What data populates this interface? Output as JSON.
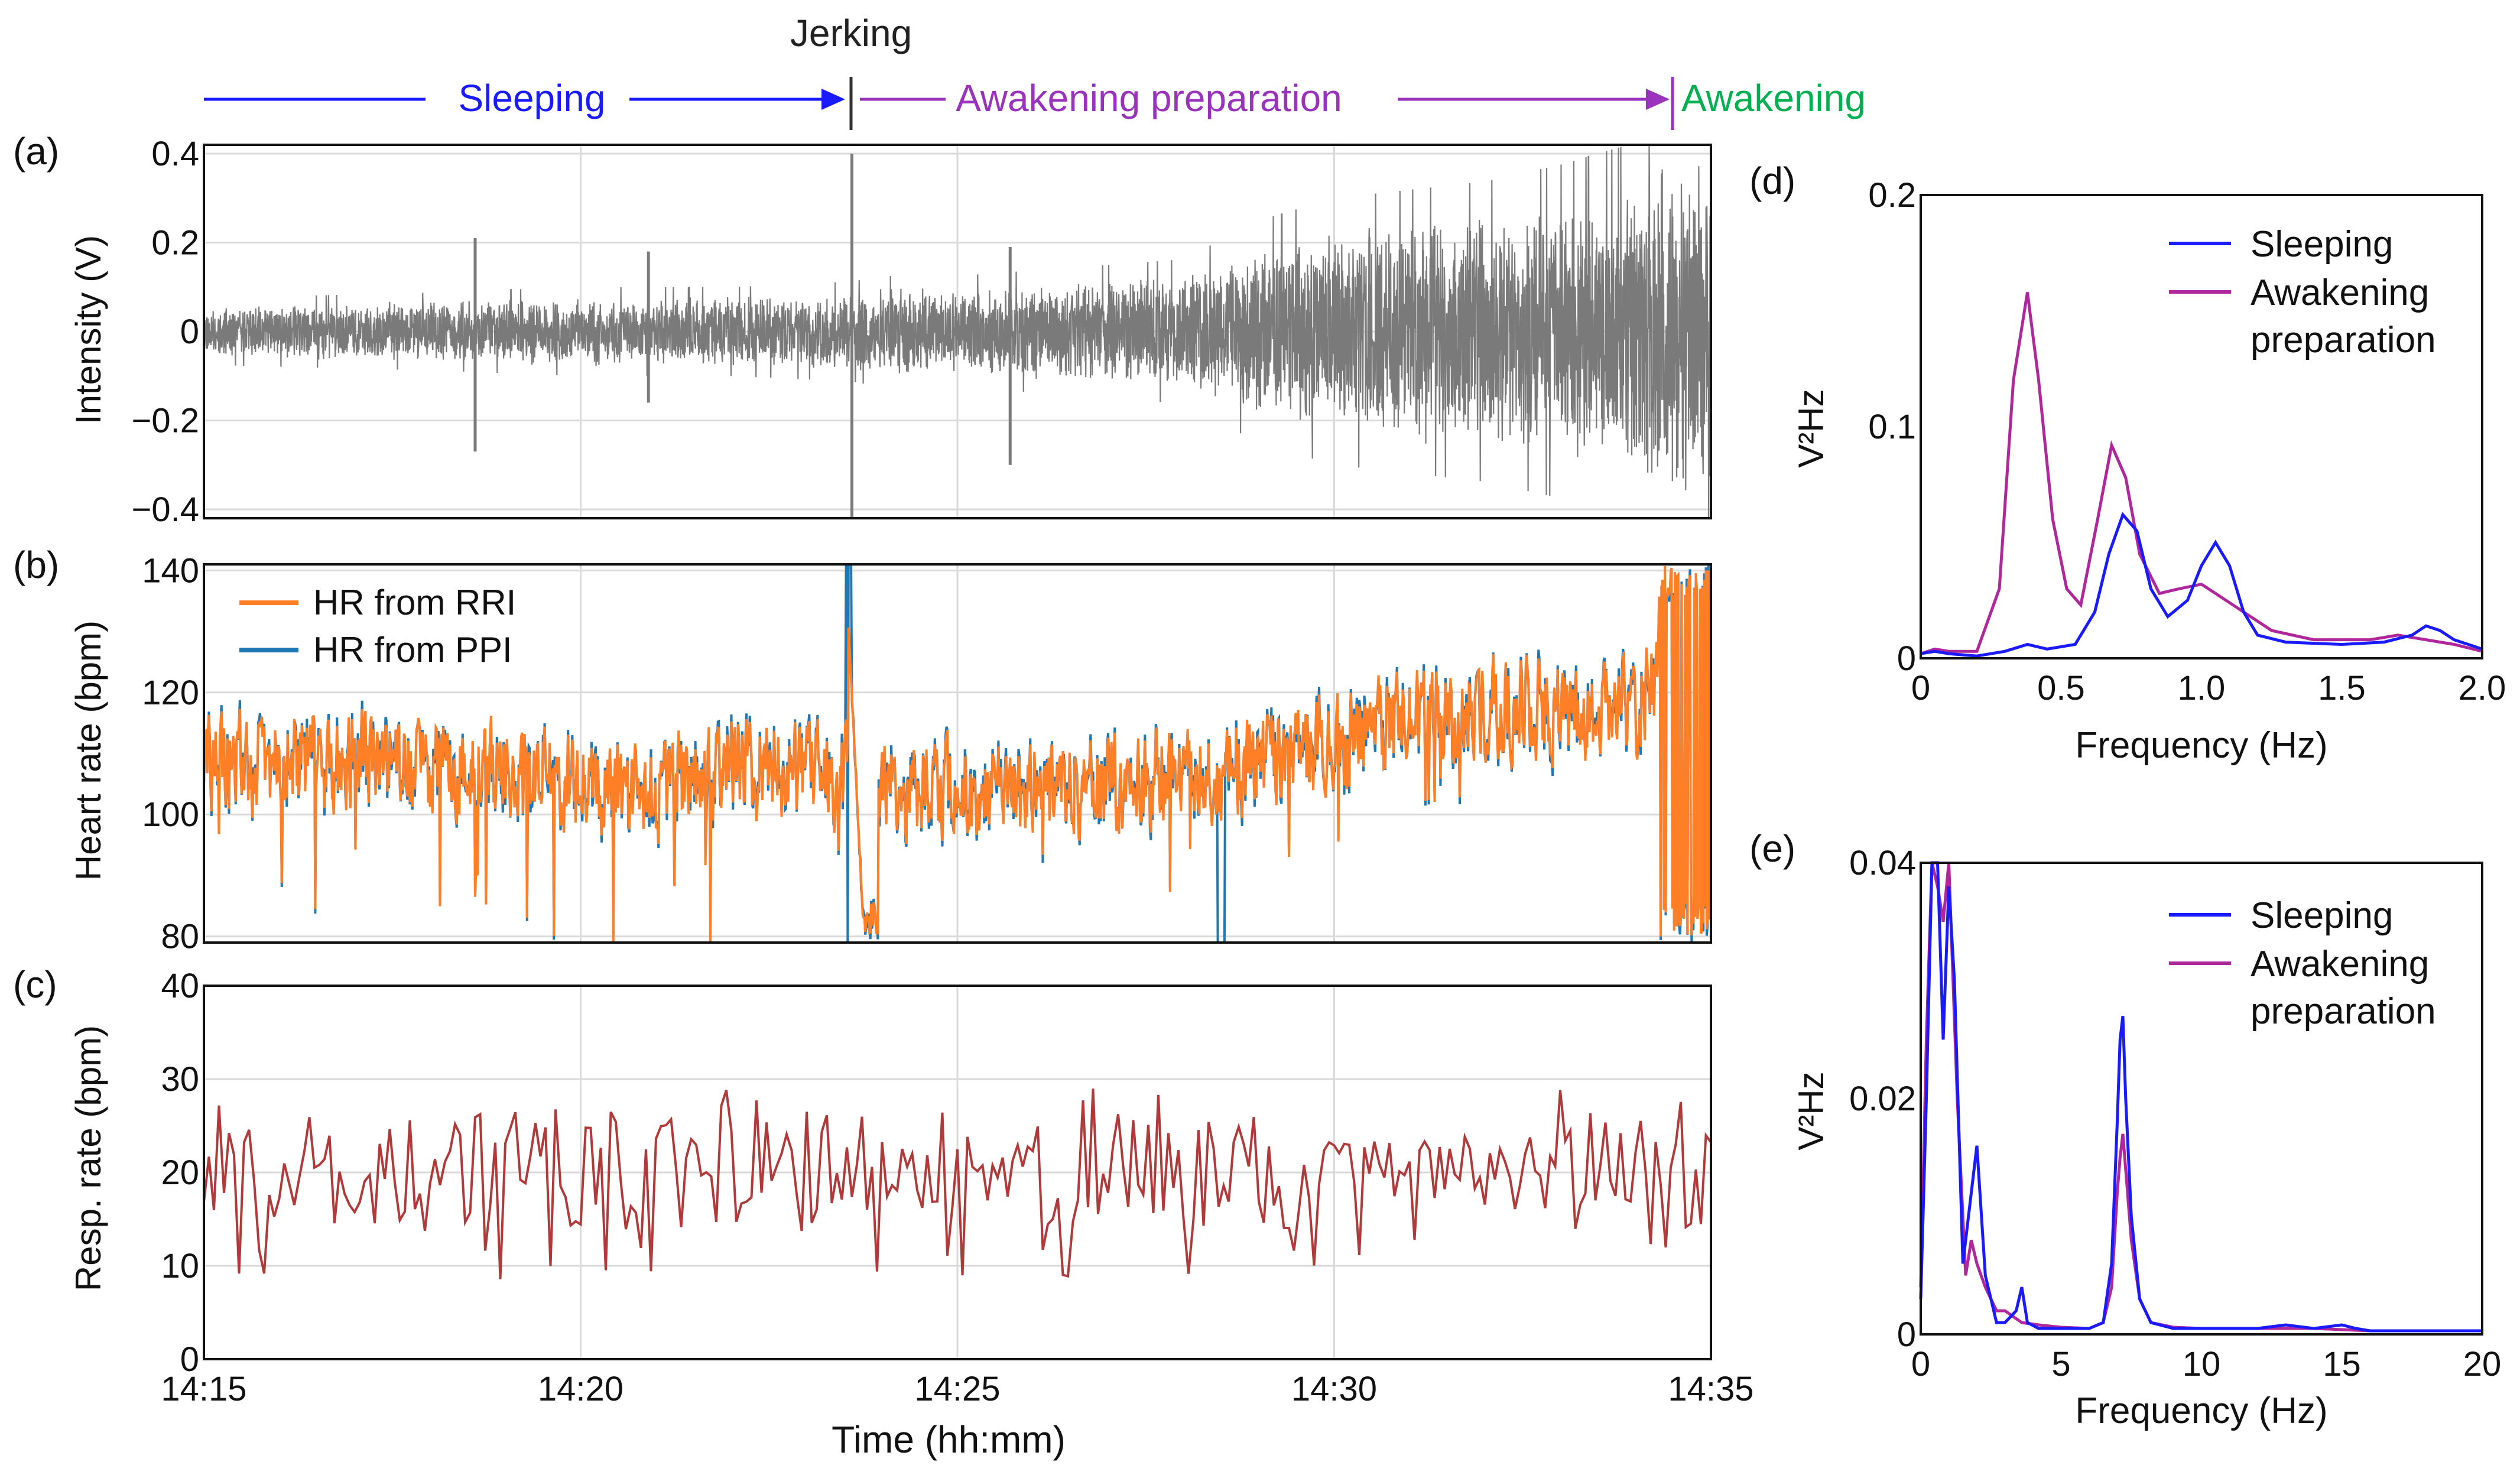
{
  "phases": {
    "jerking": "Jerking",
    "sleeping": "Sleeping",
    "awakening_preparation": "Awakening preparation",
    "awakening": "Awakening",
    "colors": {
      "sleeping": "#1a1aff",
      "awakening_preparation": "#9933bb",
      "awakening": "#00b050",
      "jerking": "#333333"
    }
  },
  "chart_data": [
    {
      "id": "a",
      "panel_label": "(a)",
      "type": "line",
      "title": "",
      "xlabel": "",
      "ylabel": "Intensity (V)",
      "ylim": [
        -0.42,
        0.42
      ],
      "yticks": [
        -0.4,
        -0.2,
        0,
        0.2,
        0.4
      ],
      "ytick_labels": [
        "−0.4",
        "−0.2",
        "0",
        "0.2",
        "0.4"
      ],
      "xlim": [
        0,
        20
      ],
      "grid": true,
      "series": [
        {
          "name": "Intensity",
          "color": "#7a7a7a",
          "envelope": [
            [
              0,
              0.06
            ],
            [
              3,
              0.07
            ],
            [
              5,
              0.08
            ],
            [
              7,
              0.08
            ],
            [
              8.6,
              0.09
            ],
            [
              9,
              0.1
            ],
            [
              10,
              0.1
            ],
            [
              11,
              0.11
            ],
            [
              13,
              0.13
            ],
            [
              14,
              0.2
            ],
            [
              15,
              0.24
            ],
            [
              17,
              0.27
            ],
            [
              18,
              0.3
            ],
            [
              19,
              0.34
            ],
            [
              19.5,
              0.4
            ],
            [
              20,
              0.42
            ]
          ],
          "spikes": [
            [
              3.6,
              0.21,
              -0.27
            ],
            [
              5.9,
              0.18,
              -0.16
            ],
            [
              8.6,
              0.4,
              -0.42
            ],
            [
              10.7,
              0.19,
              -0.3
            ]
          ]
        }
      ]
    },
    {
      "id": "b",
      "panel_label": "(b)",
      "type": "line",
      "title": "",
      "xlabel": "",
      "ylabel": "Heart rate (bpm)",
      "ylim": [
        79,
        141
      ],
      "yticks": [
        80,
        100,
        120,
        140
      ],
      "ytick_labels": [
        "80",
        "100",
        "120",
        "140"
      ],
      "xlim": [
        0,
        20
      ],
      "grid": true,
      "legend": "top-left",
      "series": [
        {
          "name": "HR from RRI",
          "color": "#ff7f27"
        },
        {
          "name": "HR from PPI",
          "color": "#1f77b4"
        }
      ],
      "trend": [
        [
          0,
          108
        ],
        [
          2,
          109
        ],
        [
          4,
          107
        ],
        [
          5.5,
          105
        ],
        [
          6,
          104
        ],
        [
          7,
          108
        ],
        [
          8.5,
          106
        ],
        [
          8.7,
          103
        ],
        [
          9.5,
          105
        ],
        [
          10.5,
          103
        ],
        [
          12,
          104
        ],
        [
          13,
          106
        ],
        [
          14,
          109
        ],
        [
          15,
          112
        ],
        [
          16,
          115
        ],
        [
          17,
          118
        ],
        [
          18,
          117
        ],
        [
          19,
          118
        ],
        [
          19.2,
          120
        ],
        [
          20,
          124
        ]
      ]
    },
    {
      "id": "c",
      "panel_label": "(c)",
      "type": "line",
      "title": "",
      "xlabel": "Time (hh:mm)",
      "ylabel": "Resp. rate (bpm)",
      "ylim": [
        0,
        40
      ],
      "yticks": [
        0,
        10,
        20,
        30,
        40
      ],
      "ytick_labels": [
        "0",
        "10",
        "20",
        "30",
        "40"
      ],
      "xlim": [
        0,
        20
      ],
      "grid": true,
      "xticks": [
        0,
        5,
        10,
        15,
        20
      ],
      "xtick_labels": [
        "14:15",
        "14:20",
        "14:25",
        "14:30",
        "14:35"
      ],
      "series": [
        {
          "name": "Respiration rate",
          "color": "#b03a3a",
          "mean": 20
        }
      ]
    },
    {
      "id": "d",
      "panel_label": "(d)",
      "type": "line",
      "title": "",
      "xlabel": "Frequency (Hz)",
      "ylabel": "V²Hz",
      "xlim": [
        0,
        2.0
      ],
      "ylim": [
        0,
        0.2
      ],
      "xticks": [
        0,
        0.5,
        1.0,
        1.5,
        2.0
      ],
      "xtick_labels": [
        "0",
        "0.5",
        "1.0",
        "1.5",
        "2.0"
      ],
      "yticks": [
        0,
        0.1,
        0.2
      ],
      "ytick_labels": [
        "0",
        "0.1",
        "0.2"
      ],
      "legend": "top-right",
      "grid": false,
      "series": [
        {
          "name": "Sleeping",
          "color": "#1a1aff",
          "x": [
            0,
            0.05,
            0.1,
            0.2,
            0.3,
            0.38,
            0.45,
            0.55,
            0.62,
            0.67,
            0.72,
            0.77,
            0.82,
            0.88,
            0.95,
            1.0,
            1.05,
            1.1,
            1.15,
            1.2,
            1.3,
            1.5,
            1.65,
            1.75,
            1.8,
            1.85,
            1.9,
            2.0
          ],
          "y": [
            0.002,
            0.003,
            0.002,
            0.001,
            0.003,
            0.006,
            0.004,
            0.006,
            0.02,
            0.045,
            0.062,
            0.055,
            0.03,
            0.018,
            0.025,
            0.04,
            0.05,
            0.04,
            0.02,
            0.01,
            0.007,
            0.006,
            0.007,
            0.01,
            0.014,
            0.012,
            0.008,
            0.004
          ]
        },
        {
          "name": "Awakening\npreparation",
          "color": "#b0279b",
          "x": [
            0,
            0.05,
            0.1,
            0.2,
            0.28,
            0.33,
            0.38,
            0.42,
            0.47,
            0.52,
            0.57,
            0.63,
            0.68,
            0.73,
            0.78,
            0.85,
            0.92,
            1.0,
            1.05,
            1.15,
            1.25,
            1.4,
            1.6,
            1.7,
            1.8,
            1.9,
            2.0
          ],
          "y": [
            0.002,
            0.004,
            0.003,
            0.003,
            0.03,
            0.12,
            0.158,
            0.12,
            0.06,
            0.03,
            0.023,
            0.06,
            0.092,
            0.078,
            0.045,
            0.028,
            0.03,
            0.032,
            0.028,
            0.02,
            0.012,
            0.008,
            0.008,
            0.01,
            0.008,
            0.006,
            0.003
          ]
        }
      ]
    },
    {
      "id": "e",
      "panel_label": "(e)",
      "type": "line",
      "title": "",
      "xlabel": "Frequency (Hz)",
      "ylabel": "V²Hz",
      "xlim": [
        0,
        20
      ],
      "ylim": [
        0,
        0.04
      ],
      "xticks": [
        0,
        5,
        10,
        15,
        20
      ],
      "xtick_labels": [
        "0",
        "5",
        "10",
        "15",
        "20"
      ],
      "yticks": [
        0,
        0.02,
        0.04
      ],
      "ytick_labels": [
        "0",
        "0.02",
        "0.04"
      ],
      "legend": "top-right",
      "grid": false,
      "series": [
        {
          "name": "Sleeping",
          "color": "#1a1aff",
          "x": [
            0,
            0.2,
            0.4,
            0.6,
            0.8,
            1.0,
            1.2,
            1.5,
            1.8,
            2.0,
            2.3,
            2.7,
            3.0,
            3.4,
            3.6,
            3.8,
            4.2,
            5,
            6,
            6.5,
            6.8,
            7.0,
            7.1,
            7.2,
            7.3,
            7.5,
            7.8,
            8.2,
            9,
            10,
            12,
            13,
            14,
            15,
            15.5,
            16,
            18,
            20
          ],
          "y": [
            0.003,
            0.02,
            0.04,
            0.04,
            0.025,
            0.038,
            0.03,
            0.006,
            0.012,
            0.016,
            0.005,
            0.001,
            0.001,
            0.002,
            0.004,
            0.001,
            0.0005,
            0.0005,
            0.0005,
            0.001,
            0.006,
            0.018,
            0.025,
            0.027,
            0.02,
            0.01,
            0.003,
            0.001,
            0.0005,
            0.0005,
            0.0005,
            0.0008,
            0.0005,
            0.0008,
            0.0005,
            0.0003,
            0.0003,
            0.0003
          ]
        },
        {
          "name": "Awakening\npreparation",
          "color": "#b0279b",
          "x": [
            0,
            0.2,
            0.4,
            0.6,
            0.8,
            1.0,
            1.3,
            1.6,
            1.8,
            2.0,
            2.3,
            2.7,
            3.0,
            3.6,
            4.2,
            5,
            6,
            6.5,
            6.8,
            7.0,
            7.1,
            7.2,
            7.3,
            7.5,
            7.8,
            8.2,
            9,
            10,
            12,
            14,
            15,
            16,
            18,
            20
          ],
          "y": [
            0.004,
            0.025,
            0.04,
            0.038,
            0.035,
            0.04,
            0.02,
            0.005,
            0.008,
            0.006,
            0.004,
            0.002,
            0.002,
            0.001,
            0.0008,
            0.0006,
            0.0005,
            0.001,
            0.004,
            0.012,
            0.015,
            0.017,
            0.014,
            0.008,
            0.003,
            0.001,
            0.0006,
            0.0005,
            0.0005,
            0.0005,
            0.0004,
            0.0003,
            0.0003,
            0.0003
          ]
        }
      ]
    }
  ]
}
